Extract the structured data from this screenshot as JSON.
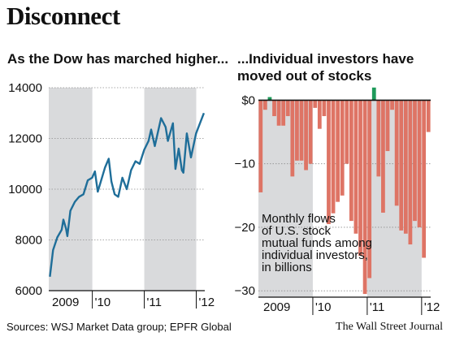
{
  "headline": "Disconnect",
  "chart_data": [
    {
      "type": "line",
      "subtitle": "As the Dow has marched higher...",
      "color": "#1f6e99",
      "shaded_years": [
        "2009",
        "2011"
      ],
      "shade_color": "#d9dadc",
      "x_tick_labels": [
        "2009",
        "'10",
        "'11",
        "'12"
      ],
      "x_range": [
        "2009-03-01",
        "2012-02-29"
      ],
      "ylim": [
        6000,
        14000
      ],
      "y_ticks": [
        6000,
        8000,
        10000,
        12000,
        14000
      ],
      "y_tick_labels": [
        "6000",
        "8000",
        "10000",
        "12000",
        "14000"
      ],
      "grid": true,
      "x": [
        "2009-03-09",
        "2009-03-31",
        "2009-04-30",
        "2009-05-31",
        "2009-06-12",
        "2009-06-30",
        "2009-07-10",
        "2009-07-31",
        "2009-08-31",
        "2009-09-30",
        "2009-10-31",
        "2009-11-30",
        "2009-12-31",
        "2010-01-19",
        "2010-02-08",
        "2010-03-31",
        "2010-04-26",
        "2010-05-15",
        "2010-06-07",
        "2010-07-02",
        "2010-07-31",
        "2010-08-31",
        "2010-09-30",
        "2010-10-31",
        "2010-11-30",
        "2010-12-31",
        "2011-01-31",
        "2011-02-18",
        "2011-03-16",
        "2011-04-29",
        "2011-05-31",
        "2011-06-16",
        "2011-07-21",
        "2011-08-08",
        "2011-08-31",
        "2011-09-22",
        "2011-10-03",
        "2011-10-27",
        "2011-11-25",
        "2011-12-31",
        "2012-01-31",
        "2012-02-24"
      ],
      "y": [
        6550,
        7600,
        8100,
        8400,
        8800,
        8450,
        8150,
        9150,
        9500,
        9700,
        9800,
        10350,
        10450,
        10700,
        9900,
        10850,
        11200,
        10300,
        9800,
        9700,
        10450,
        10000,
        10750,
        11100,
        11000,
        11550,
        11900,
        12350,
        11700,
        12800,
        12450,
        11900,
        12600,
        10800,
        11600,
        10750,
        10650,
        12200,
        11250,
        12200,
        12650,
        13000
      ]
    },
    {
      "type": "bar",
      "subtitle": "...Individual investors have moved out of stocks",
      "annotation": "Monthly flows of U.S. stock mutual funds among individual investors, in billions",
      "positive_color": "#1e9a5a",
      "negative_color": "#de7465",
      "shaded_years": [
        "2009",
        "2011"
      ],
      "shade_color": "#d9dadc",
      "x_tick_labels": [
        "2009",
        "'10",
        "'11",
        "'12"
      ],
      "x_range": [
        "2009-01",
        "2012-02"
      ],
      "ylim": [
        -31,
        3
      ],
      "y_ticks": [
        0,
        -10,
        -20,
        -30
      ],
      "y_tick_labels": [
        "$0",
        "−10",
        "−20",
        "−30"
      ],
      "grid": true,
      "categories": [
        "2009-01",
        "2009-02",
        "2009-03",
        "2009-04",
        "2009-05",
        "2009-06",
        "2009-07",
        "2009-08",
        "2009-09",
        "2009-10",
        "2009-11",
        "2009-12",
        "2010-01",
        "2010-02",
        "2010-03",
        "2010-04",
        "2010-05",
        "2010-06",
        "2010-07",
        "2010-08",
        "2010-09",
        "2010-10",
        "2010-11",
        "2010-12",
        "2011-01",
        "2011-02",
        "2011-03",
        "2011-04",
        "2011-05",
        "2011-06",
        "2011-07",
        "2011-08",
        "2011-09",
        "2011-10",
        "2011-11",
        "2011-12",
        "2012-01",
        "2012-02"
      ],
      "values": [
        -14.5,
        -1.5,
        0.5,
        -2.5,
        -4,
        -4,
        -2.5,
        -12,
        -9.5,
        -9.5,
        -11,
        -10,
        -1.2,
        -4.5,
        -2.5,
        -19.5,
        -17.8,
        -16,
        -15,
        -10,
        -19,
        -21,
        -24.5,
        -30.5,
        -28,
        2,
        -12,
        -17.7,
        -8,
        -1.5,
        -16.6,
        -20.5,
        -21,
        -22.7,
        -19,
        -20,
        -24.8,
        -5
      ]
    }
  ],
  "sources": "Sources: WSJ Market Data group; EPFR Global",
  "credit": "The Wall Street Journal"
}
